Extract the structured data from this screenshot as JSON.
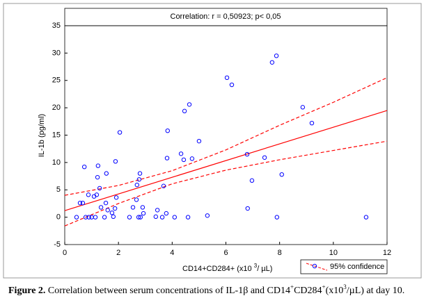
{
  "chart_data": {
    "type": "scatter",
    "title": "Correlation: r = 0,50923; p< 0,05",
    "x_label": [
      "CD14+CD284+ (x10 ",
      "3",
      "/ µL)"
    ],
    "y_label": "IL-1b (pg/ml)",
    "x": [
      0.44,
      0.57,
      0.67,
      0.73,
      0.78,
      0.88,
      0.9,
      1.0,
      1.09,
      1.14,
      1.19,
      1.22,
      1.24,
      1.3,
      1.35,
      1.48,
      1.53,
      1.55,
      1.6,
      1.76,
      1.81,
      1.87,
      1.92,
      1.89,
      2.05,
      2.41,
      2.54,
      2.67,
      2.69,
      2.75,
      2.77,
      2.8,
      2.82,
      2.9,
      2.93,
      3.39,
      3.45,
      3.63,
      3.68,
      3.78,
      3.81,
      3.83,
      4.09,
      4.33,
      4.43,
      4.46,
      4.59,
      4.64,
      4.74,
      5.0,
      5.31,
      6.04,
      6.22,
      6.79,
      6.81,
      6.97,
      7.44,
      7.72,
      7.88,
      7.9,
      8.08,
      8.86,
      9.2,
      11.22
    ],
    "y": [
      0,
      2.6,
      2.6,
      9.2,
      0,
      4.1,
      0,
      0,
      3.8,
      0,
      4.1,
      7.3,
      9.4,
      5.3,
      1.8,
      0,
      2.6,
      8,
      1.3,
      0.8,
      0.1,
      1.6,
      3.6,
      10.2,
      15.5,
      0,
      1.8,
      3.2,
      5.9,
      0,
      6.9,
      8,
      0,
      1.8,
      0.7,
      0.1,
      1.3,
      0,
      5.7,
      0.7,
      10.8,
      15.8,
      0,
      11.6,
      10.5,
      19.4,
      0,
      20.6,
      10.7,
      13.9,
      0.3,
      25.5,
      24.2,
      11.5,
      1.6,
      6.7,
      10.9,
      28.3,
      29.5,
      0,
      7.8,
      20.1,
      17.2,
      0
    ],
    "color": "#0000ff",
    "line_color": "#ff0000",
    "regression": {
      "x": [
        0,
        12
      ],
      "y": [
        1.2,
        19.5
      ]
    },
    "confidence_upper": {
      "x": [
        0,
        2,
        4,
        6,
        8,
        10,
        12
      ],
      "y": [
        4,
        5.8,
        8.5,
        12.3,
        16.8,
        21,
        25.5
      ]
    },
    "confidence_lower": {
      "x": [
        0,
        2,
        4,
        6,
        8,
        10,
        12
      ],
      "y": [
        -1.6,
        2.5,
        6.1,
        8.6,
        10.5,
        12.2,
        13.9
      ]
    },
    "legend": {
      "label": "95% confidence",
      "corner": "bottom-right"
    },
    "xlim": [
      0,
      12
    ],
    "xticks": [
      0,
      2,
      4,
      6,
      8,
      10,
      12
    ],
    "ylim": [
      -5,
      35
    ],
    "yticks": [
      -5,
      0,
      5,
      10,
      15,
      20,
      25,
      30,
      35
    ]
  },
  "caption": {
    "label": "Figure 2.",
    "parts": [
      " Correlation between serum concentrations of IL-1β and CD14",
      "+",
      "CD284",
      "+",
      "(x10",
      "3",
      "/µL) at day 10."
    ]
  }
}
